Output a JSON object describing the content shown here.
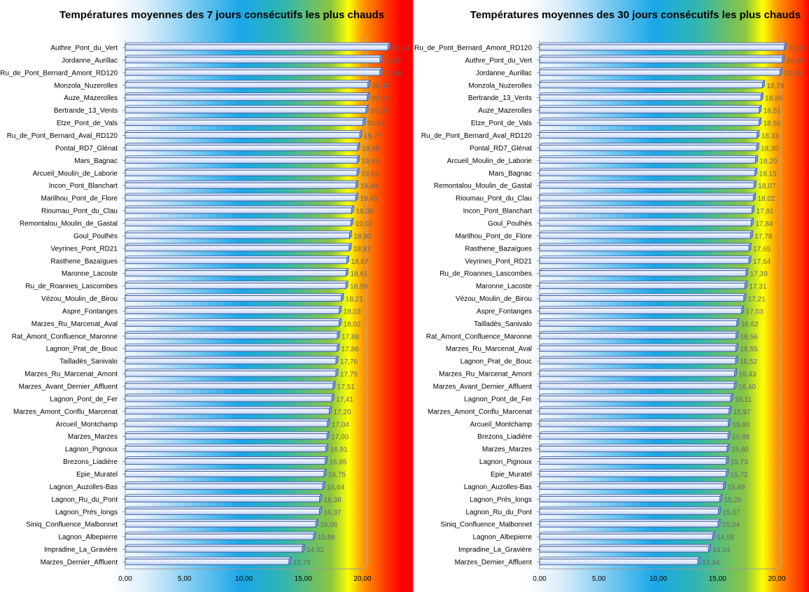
{
  "chart_data": [
    {
      "type": "bar",
      "orientation": "horizontal",
      "title": "Températures  moyennes des 7 jours consécutifs  les plus chauds",
      "xlim": [
        0,
        20
      ],
      "xticks": [
        "0,00",
        "5,00",
        "10,00",
        "15,00",
        "20,00"
      ],
      "grid": false,
      "categories": [
        "Authre_Pont_du_Vert",
        "Jordanne_Aurillac",
        "Ru_de_Pont_Bernard_Amont_RD120",
        "Monzola_Nuzerolles",
        "Auze_Mazerolles",
        "Bertrande_13_Vents",
        "Etze_Pont_de_Vals",
        "Ru_de_Pont_Bernard_Aval_RD120",
        "Pontal_RD7_Glénat",
        "Mars_Bagnac",
        "Arcueil_Moulin_de_Laborie",
        "Incon_Pont_Blanchart",
        "Marilhou_Pont_de_Flore",
        "Rioumau_Pont_du_Clau",
        "Remontalou_Moulin_de_Gastal",
        "Goul_Poulhès",
        "Veyrines_Pont_RD21",
        "Rasthene_Bazaïgues",
        "Maronne_Lacoste",
        "Ru_de_Roannes_Lascombes",
        "Vézou_Moulin_de_Birou",
        "Aspre_Fontanges",
        "Marzes_Ru_Marcenat_Aval",
        "Rat_Amont_Confluence_Maronne",
        "Lagnon_Prat_de_Bouc",
        "Tailladès_Sanivalo",
        "Marzes_Ru_Marcenat_Amont",
        "Marzes_Avant_Dernier_Affluent",
        "Lagnon_Pont_de_Fer",
        "Marzes_Amont_Conflu_Marcenat",
        "Arcueil_Montchamp",
        "Marzes_Marzes",
        "Lagnon_Pignoux",
        "Brezons_Liadière",
        "Epie_Muratel",
        "Lagnon_Auzolles-Bas",
        "Lagnon_Ru_du_Pont",
        "Lagnon_Prés_longs",
        "Siniq_Confluence_Malbonnet",
        "Lagnon_Albepierre",
        "Impradine_La_Gravière",
        "Marzes_Dernier_Affluent"
      ],
      "values": [
        22.14,
        21.47,
        21.46,
        20.45,
        20.39,
        20.29,
        20.04,
        19.77,
        19.58,
        19.55,
        19.53,
        19.44,
        19.43,
        19.08,
        19.02,
        18.9,
        18.87,
        18.67,
        18.61,
        18.59,
        18.21,
        18.03,
        18.02,
        17.88,
        17.86,
        17.76,
        17.75,
        17.51,
        17.41,
        17.2,
        17.04,
        17.0,
        16.91,
        16.85,
        16.75,
        16.64,
        16.38,
        16.37,
        16.06,
        15.86,
        14.92,
        13.79
      ],
      "value_labels": [
        "22,14",
        "21,47",
        "21,46",
        "20,45",
        "20,39",
        "20,29",
        "20,04",
        "19,77",
        "19,58",
        "19,55",
        "19,53",
        "19,44",
        "19,43",
        "19,08",
        "19,02",
        "18,90",
        "18,87",
        "18,67",
        "18,61",
        "18,59",
        "18,21",
        "18,03",
        "18,02",
        "17,88",
        "17,86",
        "17,76",
        "17,75",
        "17,51",
        "17,41",
        "17,20",
        "17,04",
        "17,00",
        "16,91",
        "16,85",
        "16,75",
        "16,64",
        "16,38",
        "16,37",
        "16,06",
        "15,86",
        "14,92",
        "13,79"
      ]
    },
    {
      "type": "bar",
      "orientation": "horizontal",
      "title": "Températures  moyennes des 30 jours consécutifs  les plus chauds",
      "xlim": [
        0,
        20
      ],
      "xticks": [
        "0,00",
        "5,00",
        "10,00",
        "15,00",
        "20,00"
      ],
      "grid": false,
      "categories": [
        "Ru_de_Pont_Bernard_Amont_RD120",
        "Authre_Pont_du_Vert",
        "Jordanne_Aurillac",
        "Monzola_Nuzerolles",
        "Bertrande_13_Vents",
        "Auze_Mazerolles",
        "Etze_Pont_de_Vals",
        "Ru_de_Pont_Bernard_Aval_RD120",
        "Pontal_RD7_Glénat",
        "Arcueil_Moulin_de_Laborie",
        "Mars_Bagnac",
        "Remontalou_Moulin_de_Gastal",
        "Rioumau_Pont_du_Clau",
        "Incon_Pont_Blanchart",
        "Goul_Poulhès",
        "Marilhou_Pont_de_Flore",
        "Rasthene_Bazaïgues",
        "Veyrines_Pont_RD21",
        "Ru_de_Roannes_Lascombes",
        "Maronne_Lacoste",
        "Vézou_Moulin_de_Birou",
        "Aspre_Fontanges",
        "Tailladès_Sanivalo",
        "Rat_Amont_Confluence_Maronne",
        "Marzes_Ru_Marcenat_Aval",
        "Lagnon_Prat_de_Bouc",
        "Marzes_Ru_Marcenat_Amont",
        "Marzes_Avant_Dernier_Affluent",
        "Lagnon_Pont_de_Fer",
        "Marzes_Amont_Conflu_Marcenat",
        "Arcueil_Montchamp",
        "Brezons_Liadière",
        "Marzes_Marzes",
        "Lagnon_Pignoux",
        "Epie_Muratel",
        "Lagnon_Auzolles-Bas",
        "Lagnon_Prés_longs",
        "Lagnon_Ru_du_Pont",
        "Siniq_Confluence_Malbonnet",
        "Lagnon_Albepierre",
        "Impradine_La_Gravière",
        "Marzes_Dernier_Affluent"
      ],
      "values": [
        20.62,
        20.45,
        20.26,
        18.79,
        18.66,
        18.51,
        18.5,
        18.33,
        18.3,
        18.2,
        18.15,
        18.07,
        18.02,
        17.91,
        17.84,
        17.78,
        17.65,
        17.64,
        17.39,
        17.31,
        17.21,
        17.03,
        16.62,
        16.56,
        16.55,
        16.52,
        16.43,
        16.4,
        16.11,
        15.97,
        15.9,
        15.88,
        15.8,
        15.73,
        15.72,
        15.49,
        15.2,
        15.07,
        15.04,
        14.58,
        14.24,
        13.34
      ],
      "value_labels": [
        "20,62",
        "20,45",
        "20,26",
        "18,79",
        "18,66",
        "18,51",
        "18,50",
        "18,33",
        "18,30",
        "18,20",
        "18,15",
        "18,07",
        "18,02",
        "17,91",
        "17,84",
        "17,78",
        "17,65",
        "17,64",
        "17,39",
        "17,31",
        "17,21",
        "17,03",
        "16,62",
        "16,56",
        "16,55",
        "16,52",
        "16,43",
        "16,40",
        "16,11",
        "15,97",
        "15,90",
        "15,88",
        "15,80",
        "15,73",
        "15,72",
        "15,49",
        "15,20",
        "15,07",
        "15,04",
        "14,58",
        "14,24",
        "13,34"
      ]
    }
  ],
  "colors": {
    "bar_fill_light": "#e4ecfb",
    "bar_fill_mid": "#b8cdf2",
    "bar_stroke": "#3f5f9f",
    "value_label": "#666666",
    "gradient_stops": [
      "#ffffff",
      "#ddeefa",
      "#1ba7e8",
      "#30b5b0",
      "#8cc63f",
      "#ffff00",
      "#ff9900",
      "#ff3300",
      "#ff0000"
    ]
  }
}
